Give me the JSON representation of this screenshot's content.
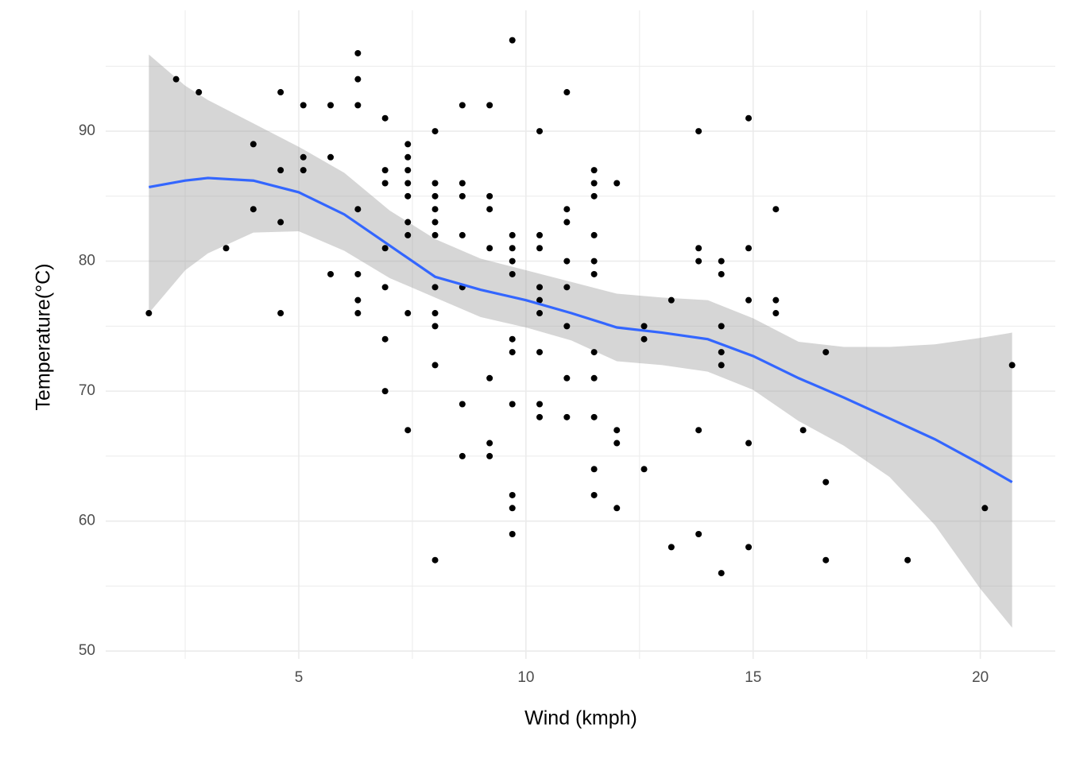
{
  "chart_data": {
    "type": "scatter",
    "x_label": "Wind (kmph)",
    "y_label": "Temperature(°C)",
    "xlim": [
      0.75,
      21.65
    ],
    "ylim": [
      49.4,
      99.3
    ],
    "xticks": [
      5,
      10,
      15,
      20
    ],
    "yticks": [
      50,
      60,
      70,
      80,
      90
    ],
    "x_minor_grid": [
      2.5,
      7.5,
      12.5,
      17.5
    ],
    "y_minor_grid": [
      55,
      65,
      75,
      85,
      95
    ],
    "grid": true,
    "series": [
      {
        "color": "#000000",
        "x": [
          1.7,
          2.3,
          2.8,
          3.4,
          4.0,
          4.0,
          4.6,
          4.6,
          4.6,
          4.6,
          5.1,
          5.1,
          5.1,
          5.7,
          5.7,
          5.7,
          6.3,
          6.3,
          6.3,
          6.3,
          6.3,
          6.3,
          6.3,
          6.9,
          6.9,
          6.9,
          6.9,
          6.9,
          6.9,
          6.9,
          7.4,
          7.4,
          7.4,
          7.4,
          7.4,
          7.4,
          7.4,
          7.4,
          7.4,
          8.0,
          8.0,
          8.0,
          8.0,
          8.0,
          8.0,
          8.0,
          8.0,
          8.0,
          8.0,
          8.0,
          8.6,
          8.6,
          8.6,
          8.6,
          8.6,
          8.6,
          8.6,
          9.2,
          9.2,
          9.2,
          9.2,
          9.2,
          9.2,
          9.2,
          9.7,
          9.7,
          9.7,
          9.7,
          9.7,
          9.7,
          9.7,
          9.7,
          9.7,
          9.7,
          9.7,
          10.3,
          10.3,
          10.3,
          10.3,
          10.3,
          10.3,
          10.3,
          10.3,
          10.3,
          10.9,
          10.9,
          10.9,
          10.9,
          10.9,
          10.9,
          10.9,
          10.9,
          11.5,
          11.5,
          11.5,
          11.5,
          11.5,
          11.5,
          11.5,
          11.5,
          11.5,
          11.5,
          11.5,
          12.0,
          12.0,
          12.0,
          12.0,
          12.6,
          12.6,
          12.6,
          13.2,
          13.2,
          13.8,
          13.8,
          13.8,
          13.8,
          13.8,
          14.3,
          14.3,
          14.3,
          14.3,
          14.3,
          14.3,
          14.9,
          14.9,
          14.9,
          14.9,
          14.9,
          15.5,
          15.5,
          15.5,
          16.1,
          16.6,
          16.6,
          16.6,
          18.4,
          20.1,
          20.7
        ],
        "values": [
          76,
          94,
          93,
          81,
          89,
          84,
          93,
          87,
          83,
          76,
          92,
          88,
          87,
          92,
          88,
          79,
          96,
          94,
          92,
          84,
          79,
          77,
          76,
          91,
          87,
          86,
          81,
          78,
          74,
          70,
          89,
          88,
          87,
          86,
          85,
          83,
          82,
          76,
          67,
          90,
          86,
          85,
          84,
          83,
          82,
          78,
          76,
          75,
          72,
          57,
          92,
          86,
          85,
          82,
          78,
          69,
          65,
          92,
          85,
          84,
          81,
          71,
          66,
          65,
          97,
          82,
          81,
          80,
          79,
          74,
          73,
          69,
          62,
          61,
          59,
          90,
          82,
          81,
          78,
          77,
          76,
          73,
          69,
          68,
          93,
          84,
          83,
          80,
          78,
          75,
          71,
          68,
          87,
          86,
          85,
          82,
          80,
          79,
          73,
          71,
          68,
          64,
          62,
          86,
          67,
          66,
          61,
          75,
          74,
          64,
          77,
          58,
          90,
          81,
          80,
          67,
          59,
          80,
          79,
          75,
          73,
          72,
          56,
          91,
          81,
          77,
          66,
          58,
          84,
          77,
          76,
          67,
          73,
          63,
          57,
          57,
          61,
          72
        ]
      }
    ],
    "smooth": {
      "color": "#3366FF",
      "band_color": "#999999",
      "x": [
        1.7,
        2.5,
        3,
        4,
        5,
        6,
        7,
        8,
        9,
        10,
        11,
        12,
        13,
        14,
        15,
        16,
        17,
        18,
        19,
        20,
        20.7
      ],
      "fit": [
        85.7,
        86.2,
        86.4,
        86.2,
        85.3,
        83.6,
        81.2,
        78.8,
        77.8,
        77.0,
        76.0,
        74.9,
        74.5,
        74.0,
        72.7,
        71.0,
        69.5,
        67.9,
        66.3,
        64.4,
        63.0
      ],
      "upper": [
        95.9,
        93.5,
        92.4,
        90.6,
        88.8,
        86.8,
        83.9,
        81.7,
        80.2,
        79.3,
        78.4,
        77.5,
        77.2,
        77.0,
        75.6,
        73.8,
        73.4,
        73.4,
        73.6,
        74.1,
        74.5
      ],
      "lower": [
        76.0,
        79.3,
        80.6,
        82.2,
        82.3,
        80.8,
        78.7,
        77.2,
        75.7,
        74.9,
        73.9,
        72.3,
        72.0,
        71.5,
        70.1,
        67.7,
        65.8,
        63.4,
        59.7,
        54.8,
        51.8
      ]
    }
  }
}
